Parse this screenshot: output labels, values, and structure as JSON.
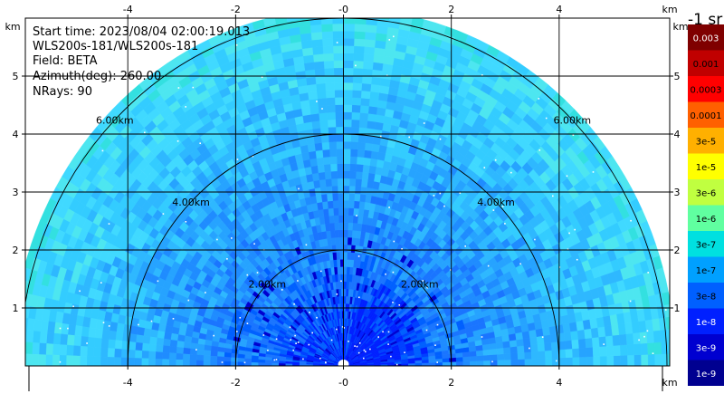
{
  "info": {
    "start_time": "Start time: 2023/08/04 02:00:19.013",
    "system": "WLS200s-181/WLS200s-181",
    "field": "Field: BETA",
    "azimuth": "Azimuth(deg): 260.00",
    "nrays": "NRays: 90"
  },
  "chart_data": {
    "type": "heatmap",
    "projection": "polar-half-disc (RHI scan)",
    "field": "BETA",
    "xlabel": "km",
    "ylabel": "km",
    "x_ticks": [
      -4,
      -2,
      0,
      2,
      4
    ],
    "x_tick_labels": [
      "-4",
      "-2",
      "-0",
      "2",
      "4"
    ],
    "y_ticks": [
      1,
      2,
      3,
      4,
      5
    ],
    "y_tick_labels": [
      "1",
      "2",
      "3",
      "4",
      "5"
    ],
    "xlim": [
      -5.9,
      6.05
    ],
    "ylim": [
      0,
      6.0
    ],
    "max_range_km": 6.0,
    "range_rings": [
      {
        "range": 2,
        "label_left": "2.00km",
        "label_right": "2.00km"
      },
      {
        "range": 4,
        "label_left": "4.00km",
        "label_right": "4.00km"
      },
      {
        "range": 6,
        "label_left": "6.00km",
        "label_right": "6.00km"
      }
    ],
    "grid": true,
    "colorbar": {
      "title": "-1 sr",
      "colors": [
        "#7f0000",
        "#c00000",
        "#ff0000",
        "#ff6000",
        "#ffb000",
        "#ffff00",
        "#c0ff40",
        "#60ffa0",
        "#00e0e0",
        "#00a0ff",
        "#0060ff",
        "#0020ff",
        "#0000d0",
        "#000090"
      ],
      "labels": [
        "0.003",
        "0.001",
        "0.0003",
        "0.0001",
        "3e-5",
        "1e-5",
        "3e-6",
        "1e-6",
        "3e-7",
        "1e-7",
        "3e-8",
        "1e-8",
        "3e-9",
        "1e-9"
      ],
      "label_colors": [
        "#ffffff",
        "#000000",
        "#000000",
        "#000000",
        "#000000",
        "#000000",
        "#000000",
        "#000000",
        "#000000",
        "#000000",
        "#000000",
        "#ffffff",
        "#ffffff",
        "#ffffff"
      ]
    },
    "dominant_value_range": [
      "1e-8",
      "3e-7"
    ]
  }
}
